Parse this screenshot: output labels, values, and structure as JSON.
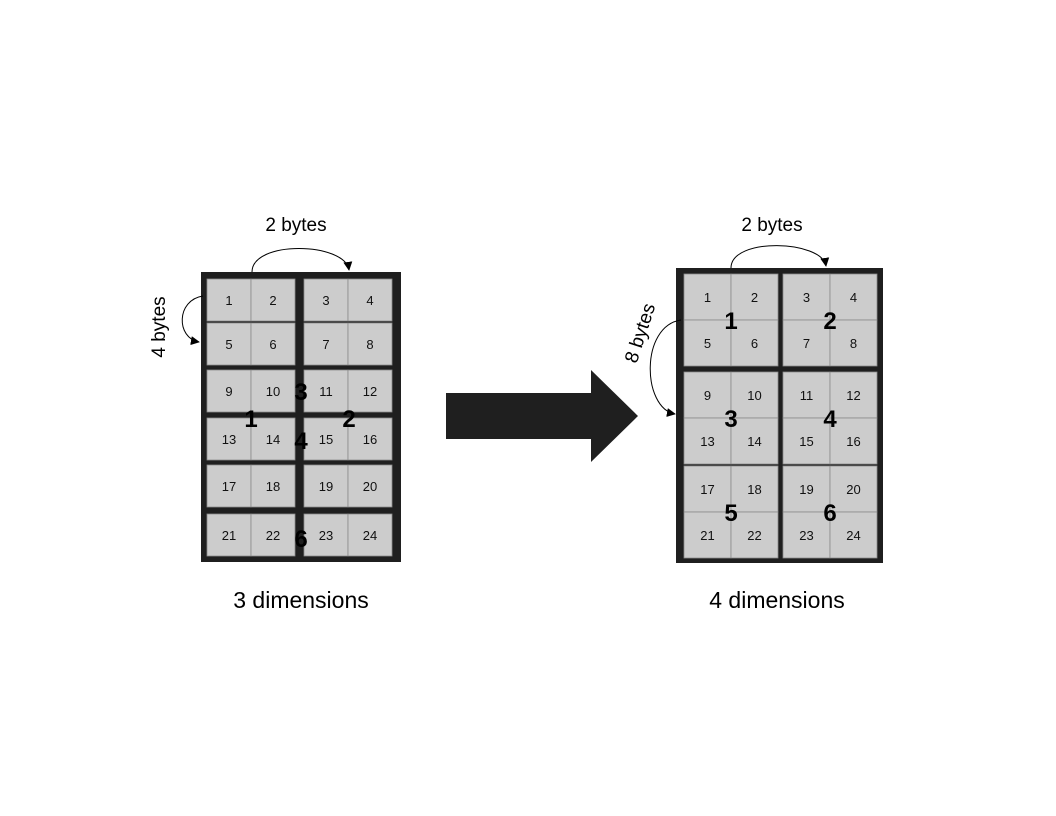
{
  "colors": {
    "frame": "#1f1f1f",
    "cell_fill": "#cccccc",
    "cell_line": "#8a8a8a",
    "arrow": "#1f1f1f",
    "text": "#000000"
  },
  "left_diagram": {
    "top_label": "2 bytes",
    "side_label": "4 bytes",
    "caption": "3 dimensions",
    "cells": [
      "1",
      "2",
      "3",
      "4",
      "5",
      "6",
      "7",
      "8",
      "9",
      "10",
      "11",
      "12",
      "13",
      "14",
      "15",
      "16",
      "17",
      "18",
      "19",
      "20",
      "21",
      "22",
      "23",
      "24"
    ],
    "groups": [
      "1",
      "2",
      "3",
      "4",
      "6"
    ]
  },
  "right_diagram": {
    "top_label": "2 bytes",
    "side_label": "8 bytes",
    "caption": "4 dimensions",
    "blocks": [
      {
        "label": "1",
        "cells": [
          "1",
          "2",
          "5",
          "6"
        ]
      },
      {
        "label": "2",
        "cells": [
          "3",
          "4",
          "7",
          "8"
        ]
      },
      {
        "label": "3",
        "cells": [
          "9",
          "10",
          "13",
          "14"
        ]
      },
      {
        "label": "4",
        "cells": [
          "11",
          "12",
          "15",
          "16"
        ]
      },
      {
        "label": "5",
        "cells": [
          "17",
          "18",
          "21",
          "22"
        ]
      },
      {
        "label": "6",
        "cells": [
          "19",
          "20",
          "23",
          "24"
        ]
      }
    ]
  },
  "transform_arrow": "right-arrow"
}
